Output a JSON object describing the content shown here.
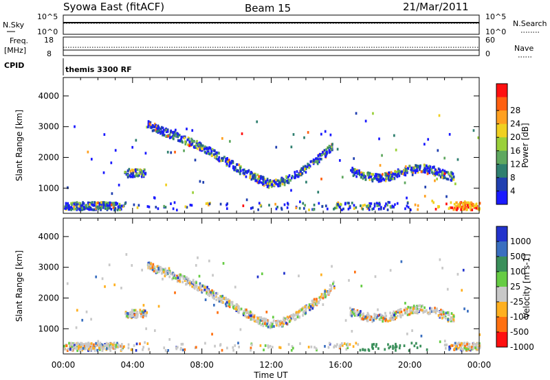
{
  "header": {
    "station": "Syowa East (fitACF)",
    "beam": "Beam 15",
    "date": "21/Mar/2011"
  },
  "panels": {
    "nsky_label": "N.Sky",
    "nsky_ticks": [
      "10^5",
      "10^0"
    ],
    "nsearch_label": "N.Search",
    "nsearch_ticks": [
      "10^5",
      "10^0"
    ],
    "freq_label": "Freq.",
    "freq_unit": "[MHz]",
    "freq_ticks": [
      "18",
      "8"
    ],
    "nave_label": "Nave",
    "nave_ticks": [
      "60",
      "0"
    ],
    "cpid_label": "CPID",
    "cpid_value": "themis 3300 RF"
  },
  "chart_data": [
    {
      "type": "heatmap",
      "name": "power",
      "ylabel": "Slant Range [km]",
      "yticks": [
        1000,
        2000,
        3000,
        4000
      ],
      "ylim": [
        180,
        4600
      ],
      "xticks": [
        "00:00",
        "04:00",
        "08:00",
        "12:00",
        "16:00",
        "20:00",
        "00:00"
      ],
      "xlim_hours": [
        0,
        24
      ],
      "colorbar": {
        "label": "Power [dB]",
        "ticks": [
          "4",
          "8",
          "12",
          "16",
          "20",
          "24",
          "28"
        ],
        "colors": [
          "#1a1aff",
          "#2040b0",
          "#2f7f6f",
          "#5fa85f",
          "#9ad03a",
          "#f0d020",
          "#ffa020",
          "#ff6010",
          "#ff1010"
        ]
      }
    },
    {
      "type": "heatmap",
      "name": "velocity",
      "ylabel": "Slant Range [km]",
      "yticks": [
        1000,
        2000,
        3000,
        4000
      ],
      "ylim": [
        180,
        4600
      ],
      "xticks": [
        "00:00",
        "04:00",
        "08:00",
        "12:00",
        "16:00",
        "20:00",
        "00:00"
      ],
      "xlim_hours": [
        0,
        24
      ],
      "colorbar": {
        "label": "Velocity [m s-1]",
        "ticks": [
          "1000",
          "500",
          "100",
          "25",
          "-25",
          "-100",
          "-500",
          "-1000"
        ],
        "colors": [
          "#2233cc",
          "#3a6fc0",
          "#3a8f5a",
          "#66cc44",
          "#c8c8c8",
          "#ffb020",
          "#ff7010",
          "#ff1010"
        ]
      }
    }
  ],
  "xaxis_label": "Time UT"
}
